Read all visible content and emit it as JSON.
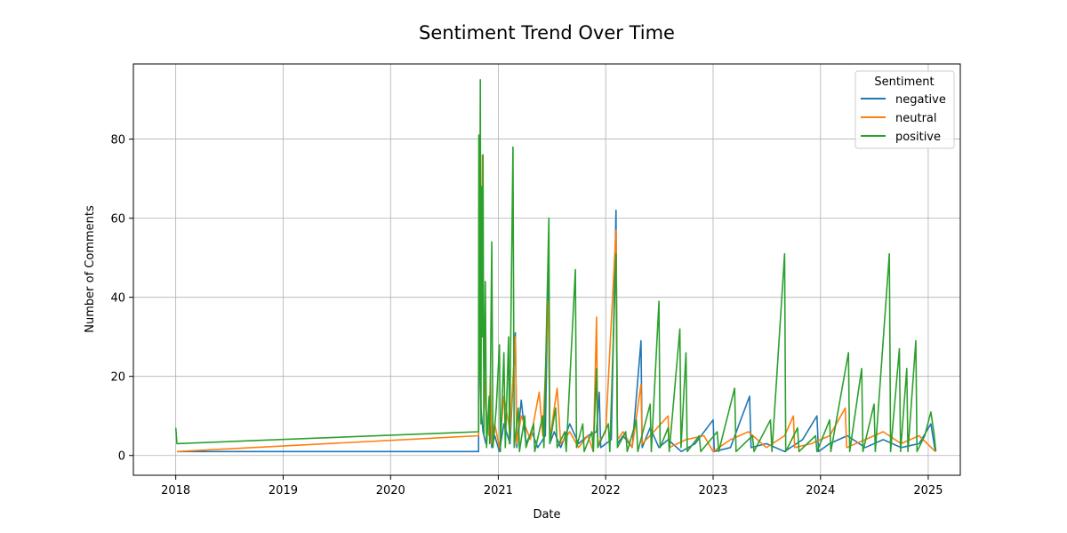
{
  "chart_data": {
    "type": "line",
    "title": "Sentiment Trend Over Time",
    "xlabel": "Date",
    "ylabel": "Number of Comments",
    "x_ticks": [
      "2018",
      "2019",
      "2020",
      "2021",
      "2022",
      "2023",
      "2024",
      "2025"
    ],
    "y_ticks": [
      0,
      20,
      40,
      60,
      80
    ],
    "xlim": [
      "2017-08-10",
      "2025-04-20"
    ],
    "ylim": [
      -5,
      99
    ],
    "grid": true,
    "legend": {
      "title": "Sentiment",
      "placement": "top-right"
    },
    "series": [
      {
        "name": "negative",
        "color": "#1f77b4",
        "points": [
          [
            "2018-01-05",
            1
          ],
          [
            "2020-10-26",
            1
          ],
          [
            "2020-10-28",
            35
          ],
          [
            "2020-11-03",
            12
          ],
          [
            "2020-11-10",
            6
          ],
          [
            "2020-11-20",
            3
          ],
          [
            "2020-12-01",
            10
          ],
          [
            "2020-12-10",
            2
          ],
          [
            "2020-12-20",
            5
          ],
          [
            "2021-01-05",
            1
          ],
          [
            "2021-01-20",
            8
          ],
          [
            "2021-02-10",
            3
          ],
          [
            "2021-02-28",
            31
          ],
          [
            "2021-03-05",
            2
          ],
          [
            "2021-03-20",
            14
          ],
          [
            "2021-04-05",
            3
          ],
          [
            "2021-04-25",
            6
          ],
          [
            "2021-05-15",
            2
          ],
          [
            "2021-06-10",
            5
          ],
          [
            "2021-06-20",
            50
          ],
          [
            "2021-06-25",
            3
          ],
          [
            "2021-07-10",
            6
          ],
          [
            "2021-08-01",
            2
          ],
          [
            "2021-09-01",
            8
          ],
          [
            "2021-10-01",
            3
          ],
          [
            "2021-11-01",
            5
          ],
          [
            "2021-12-01",
            6
          ],
          [
            "2021-12-10",
            16
          ],
          [
            "2021-12-15",
            2
          ],
          [
            "2022-01-20",
            4
          ],
          [
            "2022-02-05",
            62
          ],
          [
            "2022-02-10",
            3
          ],
          [
            "2022-03-01",
            5
          ],
          [
            "2022-04-01",
            2
          ],
          [
            "2022-05-01",
            29
          ],
          [
            "2022-05-05",
            2
          ],
          [
            "2022-06-01",
            7
          ],
          [
            "2022-07-01",
            2
          ],
          [
            "2022-08-01",
            4
          ],
          [
            "2022-09-15",
            1
          ],
          [
            "2022-11-01",
            3
          ],
          [
            "2023-01-01",
            9
          ],
          [
            "2023-01-05",
            1
          ],
          [
            "2023-03-01",
            2
          ],
          [
            "2023-05-05",
            15
          ],
          [
            "2023-05-10",
            2
          ],
          [
            "2023-07-01",
            3
          ],
          [
            "2023-09-01",
            1
          ],
          [
            "2023-11-01",
            4
          ],
          [
            "2023-12-20",
            10
          ],
          [
            "2023-12-25",
            1
          ],
          [
            "2024-02-01",
            3
          ],
          [
            "2024-04-01",
            5
          ],
          [
            "2024-06-01",
            2
          ],
          [
            "2024-08-01",
            4
          ],
          [
            "2024-10-01",
            2
          ],
          [
            "2024-12-01",
            3
          ],
          [
            "2025-01-10",
            8
          ],
          [
            "2025-01-25",
            1
          ]
        ]
      },
      {
        "name": "neutral",
        "color": "#ff7f0e",
        "points": [
          [
            "2018-01-05",
            1
          ],
          [
            "2020-10-26",
            5
          ],
          [
            "2020-10-28",
            54
          ],
          [
            "2020-11-01",
            60
          ],
          [
            "2020-11-05",
            30
          ],
          [
            "2020-11-08",
            76
          ],
          [
            "2020-11-12",
            25
          ],
          [
            "2020-11-20",
            12
          ],
          [
            "2020-12-01",
            5
          ],
          [
            "2020-12-05",
            20
          ],
          [
            "2020-12-10",
            3
          ],
          [
            "2020-12-20",
            8
          ],
          [
            "2021-01-05",
            2
          ],
          [
            "2021-01-20",
            15
          ],
          [
            "2021-02-10",
            6
          ],
          [
            "2021-02-28",
            30
          ],
          [
            "2021-03-05",
            3
          ],
          [
            "2021-03-20",
            10
          ],
          [
            "2021-04-20",
            4
          ],
          [
            "2021-05-20",
            16
          ],
          [
            "2021-06-01",
            5
          ],
          [
            "2021-06-20",
            39
          ],
          [
            "2021-06-25",
            4
          ],
          [
            "2021-07-20",
            17
          ],
          [
            "2021-08-01",
            3
          ],
          [
            "2021-09-01",
            6
          ],
          [
            "2021-10-01",
            2
          ],
          [
            "2021-11-01",
            5
          ],
          [
            "2021-11-20",
            1
          ],
          [
            "2021-12-01",
            35
          ],
          [
            "2021-12-05",
            3
          ],
          [
            "2022-01-01",
            6
          ],
          [
            "2022-02-05",
            57
          ],
          [
            "2022-02-10",
            4
          ],
          [
            "2022-03-01",
            6
          ],
          [
            "2022-04-01",
            2
          ],
          [
            "2022-05-01",
            18
          ],
          [
            "2022-05-05",
            3
          ],
          [
            "2022-06-01",
            5
          ],
          [
            "2022-08-01",
            10
          ],
          [
            "2022-08-05",
            2
          ],
          [
            "2022-10-01",
            4
          ],
          [
            "2022-12-01",
            5
          ],
          [
            "2023-01-01",
            1
          ],
          [
            "2023-03-01",
            4
          ],
          [
            "2023-05-01",
            6
          ],
          [
            "2023-07-01",
            2
          ],
          [
            "2023-09-01",
            5
          ],
          [
            "2023-10-01",
            10
          ],
          [
            "2023-10-05",
            2
          ],
          [
            "2023-12-01",
            3
          ],
          [
            "2024-02-01",
            5
          ],
          [
            "2024-03-25",
            12
          ],
          [
            "2024-03-30",
            2
          ],
          [
            "2024-06-01",
            4
          ],
          [
            "2024-08-01",
            6
          ],
          [
            "2024-10-01",
            3
          ],
          [
            "2024-12-01",
            5
          ],
          [
            "2025-01-25",
            1
          ]
        ]
      },
      {
        "name": "positive",
        "color": "#2ca02c",
        "points": [
          [
            "2018-01-01",
            7
          ],
          [
            "2018-01-05",
            3
          ],
          [
            "2020-10-26",
            6
          ],
          [
            "2020-10-27",
            81
          ],
          [
            "2020-10-29",
            20
          ],
          [
            "2020-11-01",
            95
          ],
          [
            "2020-11-03",
            8
          ],
          [
            "2020-11-05",
            68
          ],
          [
            "2020-11-08",
            30
          ],
          [
            "2020-11-10",
            76
          ],
          [
            "2020-11-13",
            5
          ],
          [
            "2020-11-18",
            44
          ],
          [
            "2020-11-22",
            2
          ],
          [
            "2020-12-01",
            15
          ],
          [
            "2020-12-03",
            3
          ],
          [
            "2020-12-10",
            54
          ],
          [
            "2020-12-14",
            2
          ],
          [
            "2020-12-25",
            12
          ],
          [
            "2021-01-05",
            28
          ],
          [
            "2021-01-08",
            1
          ],
          [
            "2021-01-20",
            26
          ],
          [
            "2021-01-25",
            2
          ],
          [
            "2021-02-05",
            30
          ],
          [
            "2021-02-08",
            3
          ],
          [
            "2021-02-20",
            78
          ],
          [
            "2021-02-24",
            2
          ],
          [
            "2021-03-10",
            12
          ],
          [
            "2021-03-14",
            1
          ],
          [
            "2021-04-01",
            10
          ],
          [
            "2021-04-05",
            2
          ],
          [
            "2021-05-01",
            8
          ],
          [
            "2021-05-05",
            1
          ],
          [
            "2021-06-01",
            10
          ],
          [
            "2021-06-05",
            2
          ],
          [
            "2021-06-22",
            60
          ],
          [
            "2021-06-25",
            3
          ],
          [
            "2021-07-15",
            12
          ],
          [
            "2021-07-20",
            2
          ],
          [
            "2021-08-15",
            6
          ],
          [
            "2021-08-20",
            1
          ],
          [
            "2021-09-20",
            47
          ],
          [
            "2021-09-24",
            2
          ],
          [
            "2021-10-15",
            8
          ],
          [
            "2021-10-20",
            1
          ],
          [
            "2021-11-15",
            6
          ],
          [
            "2021-11-20",
            1
          ],
          [
            "2021-12-01",
            22
          ],
          [
            "2021-12-05",
            2
          ],
          [
            "2022-01-10",
            8
          ],
          [
            "2022-01-15",
            1
          ],
          [
            "2022-02-05",
            51
          ],
          [
            "2022-02-10",
            2
          ],
          [
            "2022-03-10",
            6
          ],
          [
            "2022-03-15",
            1
          ],
          [
            "2022-04-15",
            9
          ],
          [
            "2022-04-20",
            1
          ],
          [
            "2022-06-01",
            13
          ],
          [
            "2022-06-05",
            1
          ],
          [
            "2022-07-01",
            39
          ],
          [
            "2022-07-05",
            2
          ],
          [
            "2022-08-01",
            7
          ],
          [
            "2022-08-05",
            1
          ],
          [
            "2022-09-10",
            32
          ],
          [
            "2022-09-14",
            2
          ],
          [
            "2022-10-01",
            26
          ],
          [
            "2022-10-05",
            1
          ],
          [
            "2022-11-15",
            5
          ],
          [
            "2022-11-20",
            1
          ],
          [
            "2023-01-15",
            6
          ],
          [
            "2023-01-20",
            1
          ],
          [
            "2023-03-15",
            17
          ],
          [
            "2023-03-20",
            1
          ],
          [
            "2023-05-15",
            5
          ],
          [
            "2023-05-20",
            1
          ],
          [
            "2023-07-15",
            9
          ],
          [
            "2023-07-20",
            1
          ],
          [
            "2023-09-01",
            51
          ],
          [
            "2023-09-05",
            1
          ],
          [
            "2023-10-15",
            7
          ],
          [
            "2023-10-20",
            1
          ],
          [
            "2023-12-15",
            5
          ],
          [
            "2023-12-20",
            1
          ],
          [
            "2024-02-01",
            9
          ],
          [
            "2024-02-05",
            1
          ],
          [
            "2024-04-05",
            26
          ],
          [
            "2024-04-09",
            1
          ],
          [
            "2024-05-20",
            22
          ],
          [
            "2024-05-24",
            1
          ],
          [
            "2024-07-01",
            13
          ],
          [
            "2024-07-05",
            1
          ],
          [
            "2024-08-22",
            51
          ],
          [
            "2024-08-26",
            1
          ],
          [
            "2024-09-25",
            27
          ],
          [
            "2024-09-29",
            1
          ],
          [
            "2024-10-20",
            22
          ],
          [
            "2024-10-24",
            1
          ],
          [
            "2024-11-20",
            29
          ],
          [
            "2024-11-24",
            1
          ],
          [
            "2024-12-20",
            5
          ],
          [
            "2025-01-10",
            11
          ],
          [
            "2025-01-20",
            6
          ],
          [
            "2025-01-27",
            1
          ]
        ]
      }
    ]
  }
}
